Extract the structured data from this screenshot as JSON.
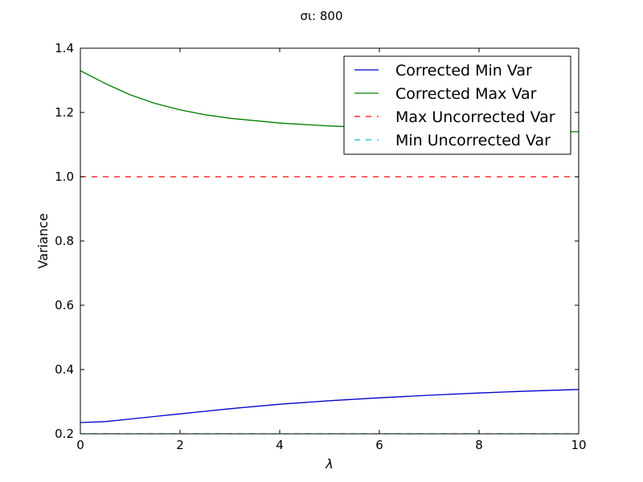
{
  "chart_data": {
    "type": "line",
    "title": "σι: 800",
    "xlabel": "λ",
    "ylabel": "Variance",
    "xlim": [
      0,
      10
    ],
    "ylim": [
      0.2,
      1.4
    ],
    "xticks": [
      0,
      2,
      4,
      6,
      8,
      10
    ],
    "yticks": [
      0.2,
      0.4,
      0.6,
      0.8,
      1.0,
      1.2,
      1.4
    ],
    "xtick_labels": [
      "0",
      "2",
      "4",
      "6",
      "8",
      "10"
    ],
    "ytick_labels": [
      "0.2",
      "0.4",
      "0.6",
      "0.8",
      "1.0",
      "1.2",
      "1.4"
    ],
    "grid": false,
    "legend_position": "top-right",
    "series": [
      {
        "name": "Corrected Min Var",
        "color": "#0000cc",
        "dash": "solid",
        "x": [
          0,
          0.5,
          1,
          1.5,
          2,
          2.5,
          3,
          4,
          5,
          6,
          7,
          8,
          9,
          10
        ],
        "y": [
          0.235,
          0.238,
          0.246,
          0.254,
          0.262,
          0.27,
          0.278,
          0.292,
          0.303,
          0.312,
          0.32,
          0.327,
          0.333,
          0.338
        ]
      },
      {
        "name": "Corrected Max Var",
        "color": "#007f00",
        "dash": "solid",
        "x": [
          0,
          0.25,
          0.5,
          1,
          1.5,
          2,
          2.5,
          3,
          4,
          5,
          6,
          7,
          8,
          9,
          10
        ],
        "y": [
          1.33,
          1.31,
          1.29,
          1.255,
          1.228,
          1.208,
          1.193,
          1.182,
          1.167,
          1.158,
          1.152,
          1.148,
          1.145,
          1.142,
          1.14
        ]
      },
      {
        "name": "Max Uncorrected Var",
        "color": "#ff0000",
        "dash": "dashed",
        "x": [
          0,
          10
        ],
        "y": [
          1.0,
          1.0
        ]
      },
      {
        "name": "Min Uncorrected Var",
        "color": "#00bfbf",
        "dash": "dashed",
        "x": [
          0,
          10
        ],
        "y": [
          0.2,
          0.2
        ]
      }
    ]
  }
}
